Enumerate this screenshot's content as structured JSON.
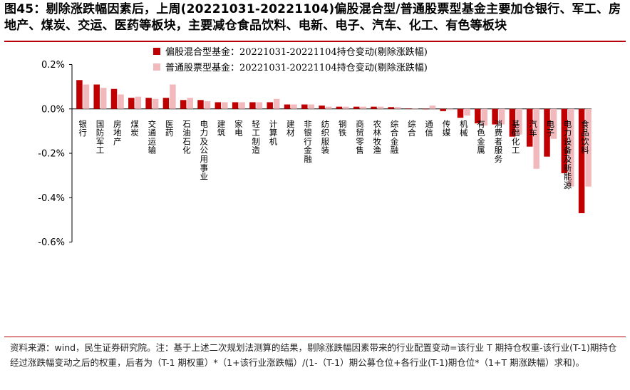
{
  "title": "图45：剔除涨跌幅因素后，上周(20221031-20221104)偏股混合型/普通股票型基金主要加仓银行、军工、房地产、煤炭、交运、医药等板块，主要减仓食品饮料、电新、电子、汽车、化工、有色等板块",
  "source_note": "资料来源：wind，民生证券研究院。注：基于上述二次规划法测算的结果，剔除涨跌幅因素带来的行业配置变动=该行业 T 期持仓权重-该行业(T-1)期持仓经过涨跌幅变动之后的权重，后者为（T-1 期权重）*（1+该行业涨跌幅）/(1-（T-1）期公募仓位+各行业(T-1)期仓位*（1+T 期涨跌幅）求和)。",
  "chart_data": {
    "type": "bar",
    "categories": [
      "银行",
      "国防军工",
      "房地产",
      "煤炭",
      "交通运输",
      "医药",
      "石油石化",
      "电力及公用事业",
      "建筑",
      "家电",
      "轻工制造",
      "计算机",
      "建材",
      "非银行金融",
      "纺织服装",
      "钢铁",
      "商贸零售",
      "农林牧渔",
      "综合金融",
      "综合",
      "通信",
      "传媒",
      "机械",
      "有色金属",
      "消费者服务",
      "基础化工",
      "汽车",
      "电子",
      "电力设备及新能源",
      "食品饮料"
    ],
    "series": [
      {
        "name": "偏股混合型基金：20221031-20221104持仓变动(剔除涨跌幅)",
        "color": "#c00000",
        "values": [
          0.13,
          0.11,
          0.09,
          0.05,
          0.05,
          0.05,
          0.04,
          0.04,
          0.03,
          0.03,
          0.03,
          0.03,
          0.02,
          0.02,
          0.015,
          0.01,
          0.01,
          0.01,
          0.008,
          0.002,
          0.0,
          -0.01,
          -0.04,
          -0.065,
          -0.07,
          -0.125,
          -0.17,
          -0.215,
          -0.29,
          -0.47
        ]
      },
      {
        "name": "普通股票型基金：20221031-20221104持仓变动(剔除涨跌幅)",
        "color": "#f2b9bd",
        "values": [
          0.11,
          0.095,
          0.065,
          0.055,
          0.045,
          0.11,
          0.05,
          0.035,
          0.03,
          0.03,
          0.03,
          0.045,
          0.02,
          0.02,
          0.01,
          0.01,
          0.01,
          0.01,
          0.008,
          0.002,
          0.015,
          -0.005,
          -0.03,
          -0.075,
          -0.07,
          -0.115,
          -0.27,
          -0.135,
          -0.35,
          -0.35
        ]
      }
    ],
    "y_ticks": [
      "0.2%",
      "0.0%",
      "-0.2%",
      "-0.4%",
      "-0.6%"
    ],
    "y_tick_values": [
      0.2,
      0.0,
      -0.2,
      -0.4,
      -0.6
    ],
    "ylim": [
      -0.6,
      0.2
    ],
    "unit": "%",
    "legend_position": "top-center"
  }
}
